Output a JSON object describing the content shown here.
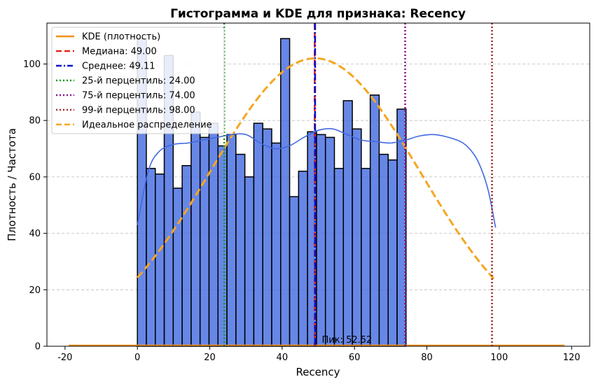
{
  "chart_data": {
    "type": "bar",
    "title": "Гистограмма и KDE для признака: Recency",
    "xlabel": "Recency",
    "ylabel": "Плотность / Частота",
    "xlim": [
      -25,
      125
    ],
    "ylim": [
      0,
      114.5
    ],
    "xticks": [
      "-20",
      "0",
      "20",
      "40",
      "60",
      "80",
      "100",
      "120"
    ],
    "xtick_values": [
      -20,
      0,
      20,
      40,
      60,
      80,
      100,
      120
    ],
    "yticks": [
      "0",
      "20",
      "40",
      "60",
      "80",
      "100"
    ],
    "ytick_values": [
      0,
      20,
      40,
      60,
      80,
      100
    ],
    "grid": "y-dashed",
    "legend_position": "top-left",
    "histogram": {
      "bin_start": 0,
      "bin_width": 2.475,
      "color": "#4169e1",
      "counts": [
        109,
        63,
        61,
        103,
        56,
        64,
        83,
        74,
        79,
        71,
        75,
        68,
        60,
        79,
        77,
        72,
        109,
        53,
        62,
        76,
        75,
        74,
        63,
        87,
        77,
        63,
        89,
        68,
        66,
        84
      ]
    },
    "kde_curve": {
      "name": "",
      "color": "#4169e1",
      "x": [
        0,
        3,
        6,
        10,
        14,
        18,
        22,
        26,
        30,
        34,
        38,
        42,
        46,
        50,
        54,
        58,
        62,
        66,
        70,
        74,
        78,
        82,
        86,
        90,
        93,
        95,
        97,
        99
      ],
      "y": [
        43,
        62,
        69,
        71.5,
        72,
        73,
        74,
        75,
        75,
        72,
        70,
        71,
        74,
        76.5,
        77,
        75,
        73,
        72.5,
        72,
        73,
        74.5,
        75,
        74,
        72,
        68,
        63,
        55,
        42
      ]
    },
    "legend": [
      {
        "label": "KDE (плотность)",
        "color": "#f0901a",
        "style": "solid"
      },
      {
        "label": "Медиана: 49.00",
        "color": "#e8231c",
        "style": "dashed"
      },
      {
        "label": "Среднее: 49.11",
        "color": "#0b12c8",
        "style": "dashdot"
      },
      {
        "label": "25-й перцентиль: 24.00",
        "color": "#1a9a1a",
        "style": "dotted"
      },
      {
        "label": "75-й перцентиль: 74.00",
        "color": "#8a108a",
        "style": "dotted"
      },
      {
        "label": "99-й перцентиль: 98.00",
        "color": "#a52a2a",
        "style": "dotted"
      },
      {
        "label": "Идеальное распределение",
        "color": "#f5a623",
        "style": "dashed"
      }
    ],
    "kde_density_line": {
      "x_range": [
        -19,
        118
      ],
      "y": 0.3,
      "color": "#f0901a"
    },
    "vlines": {
      "median": 49.0,
      "mean": 49.11,
      "p25": 24.0,
      "p75": 74.0,
      "p99": 98.0
    },
    "ideal_distribution": {
      "mean": 49.11,
      "sd": 29.0,
      "peak": 102,
      "x_range": [
        0,
        98.5
      ],
      "color": "#f5a623"
    },
    "annotation": {
      "text": "Пик: 52.52",
      "x": 52.52,
      "y": 1.2
    }
  }
}
